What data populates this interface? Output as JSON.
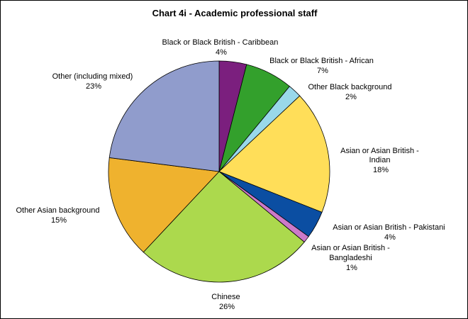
{
  "chart_data": {
    "type": "pie",
    "title": "Chart 4i - Academic professional staff",
    "start": "top",
    "direction": "clockwise",
    "slices": [
      {
        "label": "Black or Black British - Caribbean",
        "value": 4,
        "value_label": "4%",
        "color": "#7b1f7e"
      },
      {
        "label": "Black or Black British - African",
        "value": 7,
        "value_label": "7%",
        "color": "#33a02c"
      },
      {
        "label": "Other Black background",
        "value": 2,
        "value_label": "2%",
        "color": "#99d8ea"
      },
      {
        "label": "Asian or Asian British - Indian",
        "value": 18,
        "value_label": "18%",
        "color": "#ffde59"
      },
      {
        "label": "Asian or Asian British - Pakistani",
        "value": 4,
        "value_label": "4%",
        "color": "#0b4ea2"
      },
      {
        "label": "Asian or Asian British - Bangladeshi",
        "value": 1,
        "value_label": "1%",
        "color": "#cc7ac9"
      },
      {
        "label": "Chinese",
        "value": 26,
        "value_label": "26%",
        "color": "#acd94d"
      },
      {
        "label": "Other Asian background",
        "value": 15,
        "value_label": "15%",
        "color": "#efb22e"
      },
      {
        "label": "Other (including mixed)",
        "value": 23,
        "value_label": "23%",
        "color": "#909ccc"
      }
    ]
  }
}
